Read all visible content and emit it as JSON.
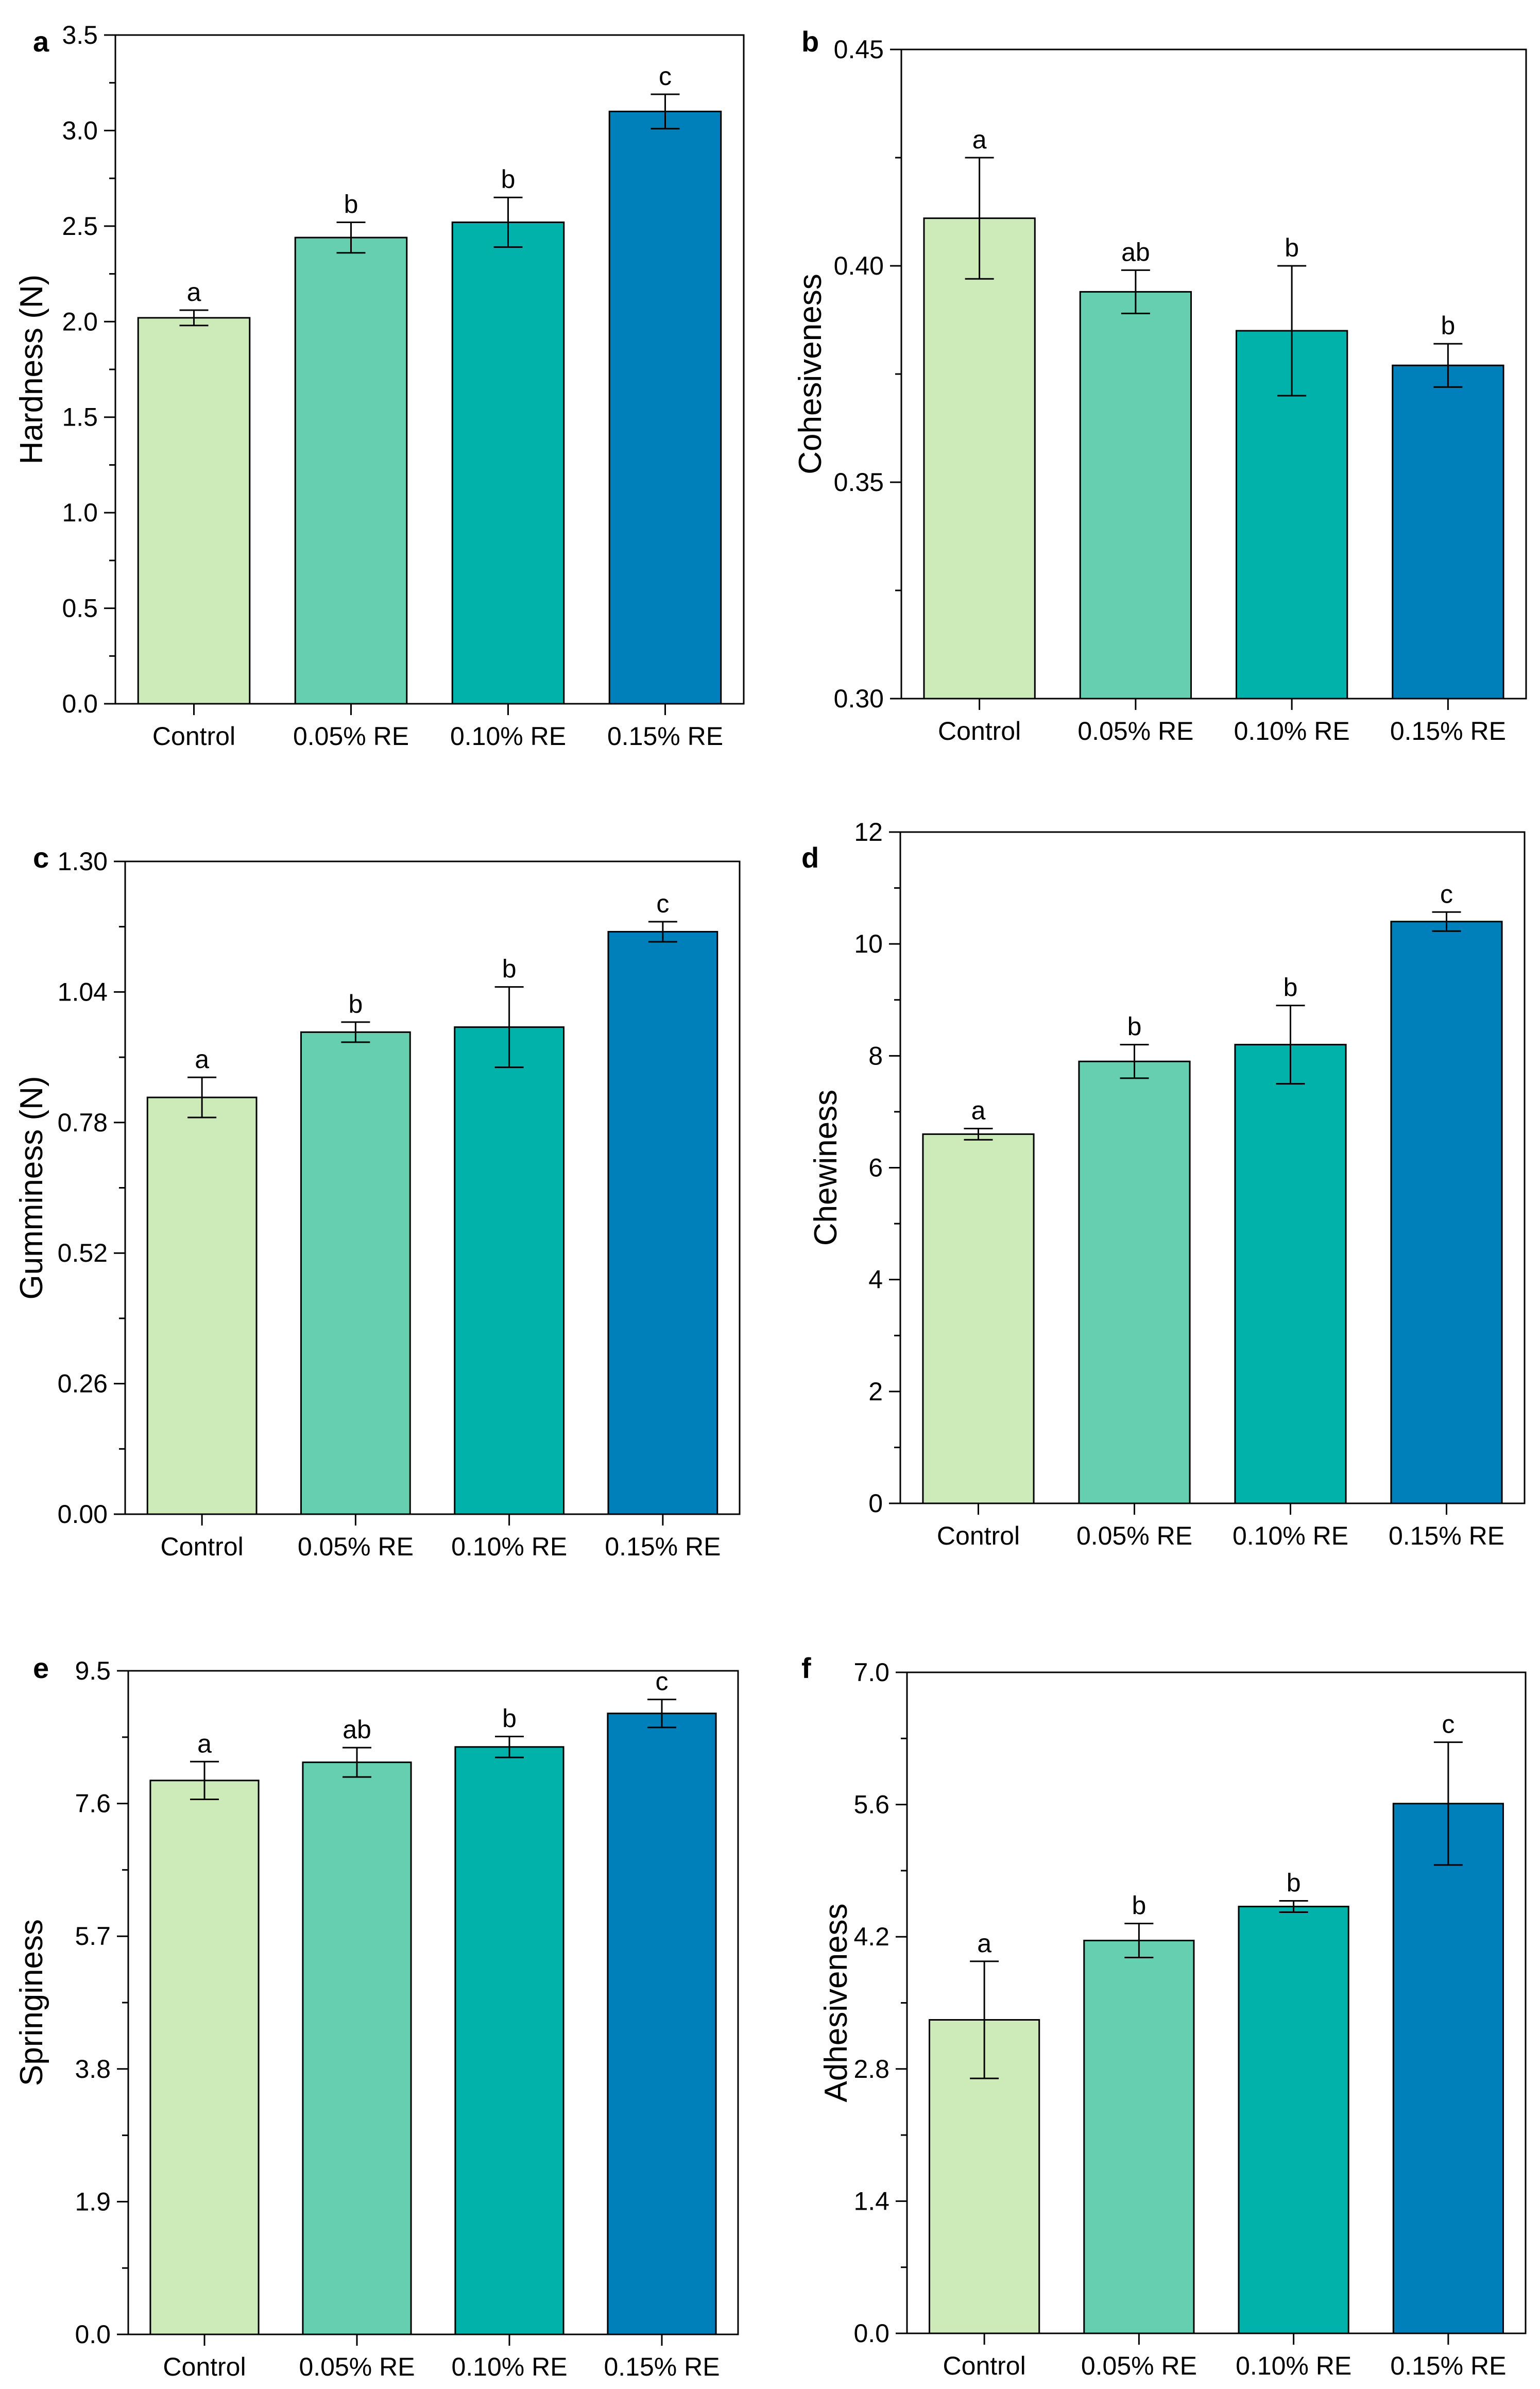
{
  "colors": {
    "bars": [
      "#cdebb8",
      "#66cfb0",
      "#00b2a9",
      "#0080ba"
    ],
    "stroke": "#000000",
    "background": "#ffffff"
  },
  "chart_data": [
    {
      "type": "bar",
      "panel": "a",
      "categories": [
        "Control",
        "0.05% RE",
        "0.10% RE",
        "0.15% RE"
      ],
      "values": [
        2.02,
        2.44,
        2.52,
        3.1
      ],
      "errors": [
        0.04,
        0.08,
        0.13,
        0.09
      ],
      "significance": [
        "a",
        "b",
        "b",
        "c"
      ],
      "ylabel": "Hardness (N)",
      "ylim": [
        0,
        3.5
      ],
      "yticks": [
        "0.0",
        "0.5",
        "1.0",
        "1.5",
        "2.0",
        "2.5",
        "3.0",
        "3.5"
      ],
      "yminor": true
    },
    {
      "type": "bar",
      "panel": "b",
      "categories": [
        "Control",
        "0.05% RE",
        "0.10% RE",
        "0.15% RE"
      ],
      "values": [
        0.411,
        0.394,
        0.385,
        0.377
      ],
      "errors": [
        0.014,
        0.005,
        0.015,
        0.005
      ],
      "significance": [
        "a",
        "ab",
        "b",
        "b"
      ],
      "ylabel": "Cohesiveness",
      "ylim": [
        0.3,
        0.45
      ],
      "yticks": [
        "0.30",
        "0.35",
        "0.40",
        "0.45"
      ],
      "yminor": true
    },
    {
      "type": "bar",
      "panel": "c",
      "categories": [
        "Control",
        "0.05% RE",
        "0.10% RE",
        "0.15% RE"
      ],
      "values": [
        0.83,
        0.96,
        0.97,
        1.16
      ],
      "errors": [
        0.04,
        0.02,
        0.08,
        0.02
      ],
      "significance": [
        "a",
        "b",
        "b",
        "c"
      ],
      "ylabel": "Gumminess (N)",
      "ylim": [
        0,
        1.3
      ],
      "yticks": [
        "0.00",
        "0.26",
        "0.52",
        "0.78",
        "1.04",
        "1.30"
      ],
      "yminor": true
    },
    {
      "type": "bar",
      "panel": "d",
      "categories": [
        "Control",
        "0.05% RE",
        "0.10% RE",
        "0.15% RE"
      ],
      "values": [
        6.6,
        7.9,
        8.2,
        10.4
      ],
      "errors": [
        0.1,
        0.3,
        0.7,
        0.17
      ],
      "significance": [
        "a",
        "b",
        "b",
        "c"
      ],
      "ylabel": "Chewiness",
      "ylim": [
        0,
        12
      ],
      "yticks": [
        "0",
        "2",
        "4",
        "6",
        "8",
        "10",
        "12"
      ],
      "yminor": true
    },
    {
      "type": "bar",
      "panel": "e",
      "categories": [
        "Control",
        "0.05% RE",
        "0.10% RE",
        "0.15% RE"
      ],
      "values": [
        7.93,
        8.19,
        8.41,
        8.89
      ],
      "errors": [
        0.27,
        0.21,
        0.15,
        0.2
      ],
      "significance": [
        "a",
        "ab",
        "b",
        "c"
      ],
      "ylabel": "Springiness",
      "ylim": [
        0,
        9.5
      ],
      "yticks": [
        "0.0",
        "1.9",
        "3.8",
        "5.7",
        "7.6",
        "9.5"
      ],
      "yminor": true
    },
    {
      "type": "bar",
      "panel": "f",
      "categories": [
        "Control",
        "0.05% RE",
        "0.10% RE",
        "0.15% RE"
      ],
      "values": [
        3.32,
        4.16,
        4.52,
        5.61
      ],
      "errors": [
        0.62,
        0.18,
        0.06,
        0.65
      ],
      "significance": [
        "a",
        "b",
        "b",
        "c"
      ],
      "ylabel": "Adhesiveness",
      "ylim": [
        0,
        7.0
      ],
      "yticks": [
        "0.0",
        "1.4",
        "2.8",
        "4.2",
        "5.6",
        "7.0"
      ],
      "yminor": true
    }
  ]
}
